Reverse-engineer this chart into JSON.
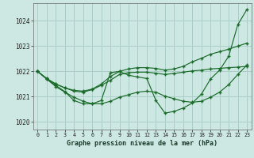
{
  "title": "Graphe pression niveau de la mer (hPa)",
  "background_color": "#cde8e2",
  "grid_color": "#aacfc8",
  "line_color": "#1a6b2a",
  "xlim_min": -0.5,
  "xlim_max": 23.5,
  "ylim_min": 1019.7,
  "ylim_max": 1024.7,
  "yticks": [
    1020,
    1021,
    1022,
    1023,
    1024
  ],
  "xticks": [
    0,
    1,
    2,
    3,
    4,
    5,
    6,
    7,
    8,
    9,
    10,
    11,
    12,
    13,
    14,
    15,
    16,
    17,
    18,
    19,
    20,
    21,
    22,
    23
  ],
  "hours": [
    0,
    1,
    2,
    3,
    4,
    5,
    6,
    7,
    8,
    9,
    10,
    11,
    12,
    13,
    14,
    15,
    16,
    17,
    18,
    19,
    20,
    21,
    22,
    23
  ],
  "series1": [
    1022.0,
    1021.7,
    1021.45,
    1021.2,
    1020.85,
    1020.72,
    1020.72,
    1020.85,
    1021.95,
    1022.0,
    1021.85,
    1021.78,
    1021.72,
    1020.85,
    1020.35,
    1020.42,
    1020.55,
    1020.75,
    1021.1,
    1021.7,
    1022.05,
    1022.6,
    1023.85,
    1024.45
  ],
  "series2": [
    1022.0,
    1021.72,
    1021.5,
    1021.35,
    1021.22,
    1021.18,
    1021.28,
    1021.45,
    1021.65,
    1021.88,
    1021.95,
    1021.97,
    1021.97,
    1021.93,
    1021.88,
    1021.92,
    1021.97,
    1022.02,
    1022.05,
    1022.1,
    1022.12,
    1022.15,
    1022.17,
    1022.2
  ],
  "series3": [
    1022.0,
    1021.72,
    1021.5,
    1021.35,
    1021.25,
    1021.22,
    1021.3,
    1021.5,
    1021.8,
    1022.0,
    1022.1,
    1022.15,
    1022.15,
    1022.12,
    1022.05,
    1022.1,
    1022.2,
    1022.38,
    1022.52,
    1022.68,
    1022.78,
    1022.88,
    1023.0,
    1023.12
  ],
  "series4": [
    1022.0,
    1021.7,
    1021.4,
    1021.18,
    1020.98,
    1020.82,
    1020.72,
    1020.72,
    1020.82,
    1020.98,
    1021.08,
    1021.18,
    1021.22,
    1021.18,
    1021.02,
    1020.92,
    1020.82,
    1020.78,
    1020.82,
    1020.98,
    1021.18,
    1021.48,
    1021.88,
    1022.25
  ]
}
